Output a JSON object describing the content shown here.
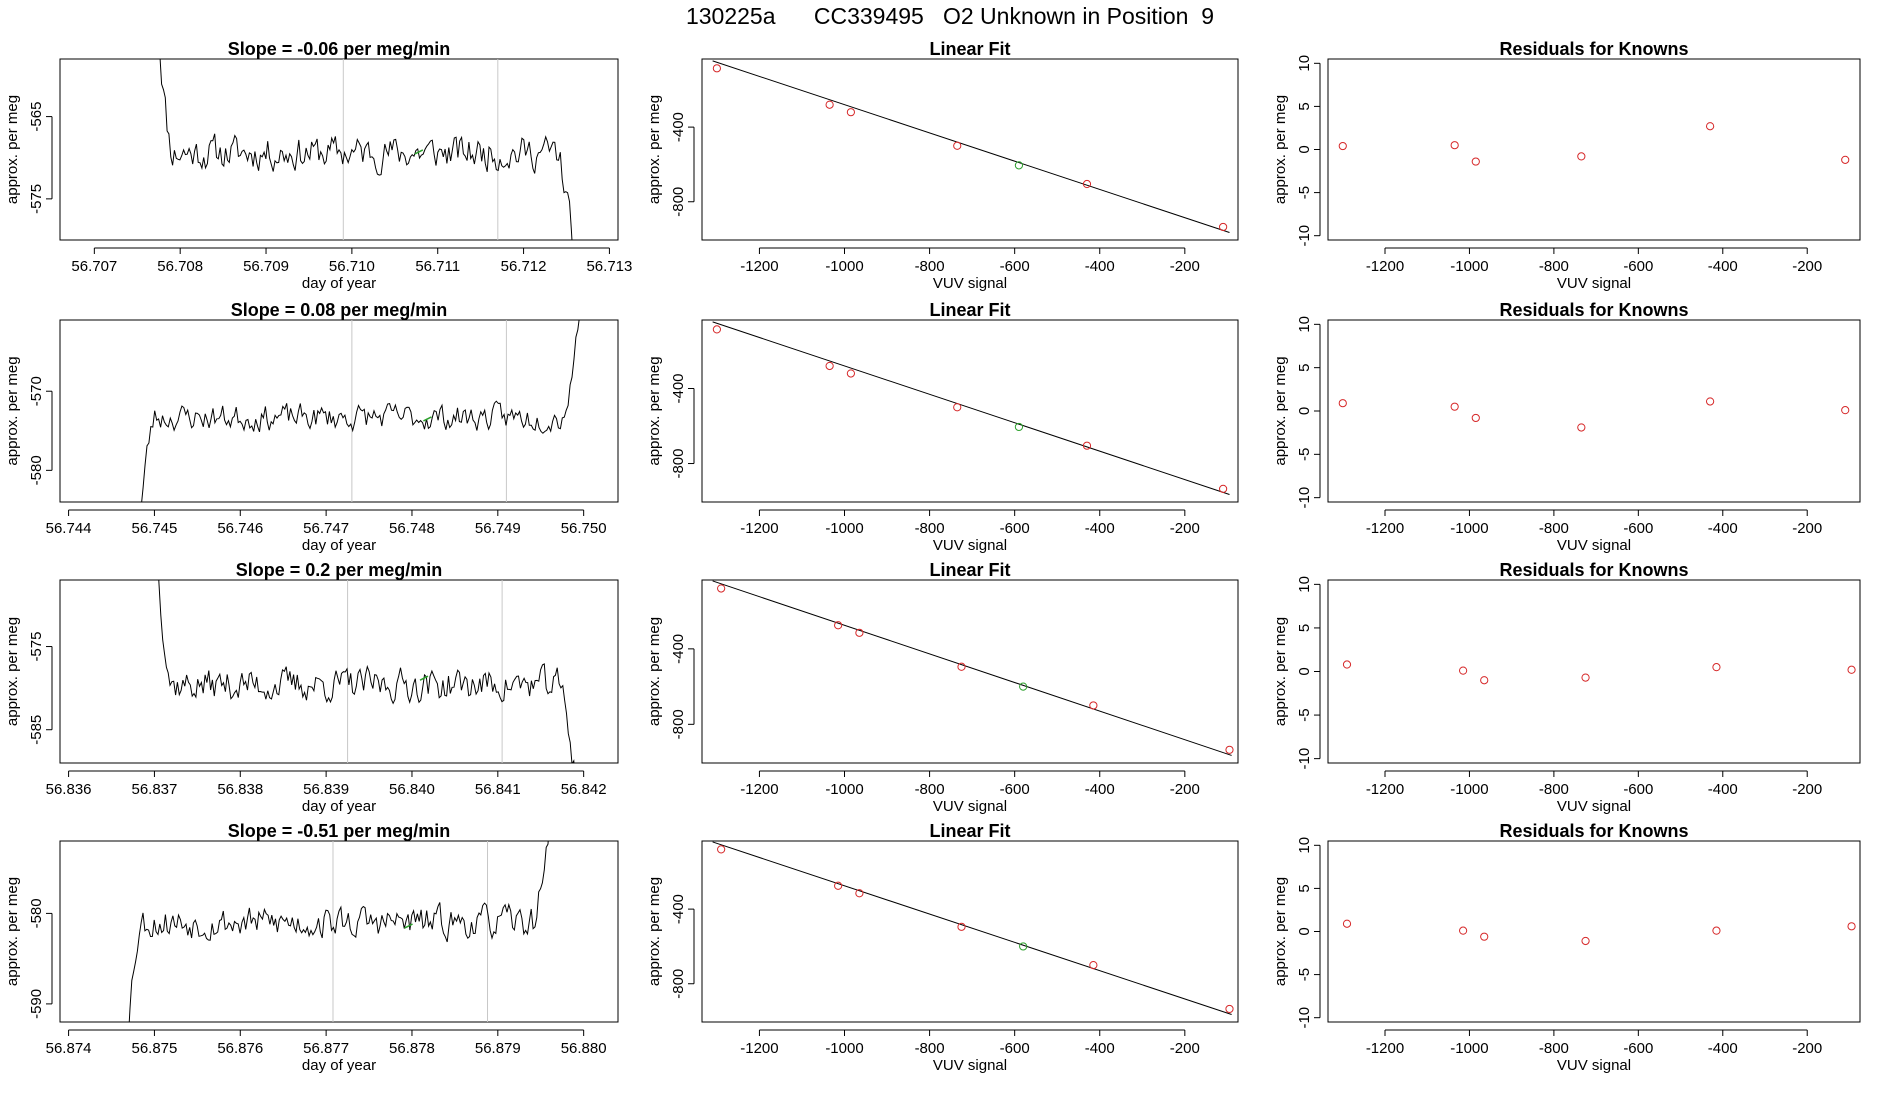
{
  "header": {
    "run_id": "130225a",
    "cylinder_id": "CC339495",
    "description": "O2 Unknown in Position  9"
  },
  "colors": {
    "line": "#000000",
    "known_point": "#d62728",
    "unknown_point": "#2ca02c",
    "marker_line": "#c8c8c8",
    "residual_point": "#d62728"
  },
  "chart_data": [
    {
      "type": "line",
      "title_prefix": "Slope = ",
      "slope": "-0.06",
      "title_suffix": " per meg/min",
      "title": "Slope =  -0.06  per meg/min",
      "xlabel": "day of year",
      "ylabel": "approx. per meg",
      "xlim": [
        56.7066,
        56.7131
      ],
      "ylim": [
        -580,
        -558
      ],
      "xticks": [
        56.707,
        56.708,
        56.709,
        56.71,
        56.711,
        56.712,
        56.713
      ],
      "xtick_labels": [
        "56.707",
        "56.708",
        "56.709",
        "56.710",
        "56.711",
        "56.712",
        "56.713"
      ],
      "yticks": [
        -565,
        -575
      ],
      "ytick_labels": [
        "-565",
        "-575"
      ],
      "x_start": 56.70772,
      "x_end": 56.71262,
      "baseline": -569.4,
      "noise": 2.0,
      "rise_start": -550,
      "tail_end": -585,
      "vlines": [
        56.7099,
        56.7117
      ],
      "unknown_marker": [
        56.71078,
        -569.3
      ],
      "seed": 11
    },
    {
      "type": "scatter",
      "title": "Linear Fit",
      "xlabel": "VUV signal",
      "ylabel": "approx. per meg",
      "xlim": [
        -1335,
        -75
      ],
      "ylim": [
        -1005,
        -35
      ],
      "xticks": [
        -1200,
        -1000,
        -800,
        -600,
        -400,
        -200
      ],
      "xtick_labels": [
        "-1200",
        "-1000",
        "-800",
        "-600",
        "-400",
        "-200"
      ],
      "yticks": [
        -400,
        -800
      ],
      "ytick_labels": [
        "-400",
        "-800"
      ],
      "fit_line": {
        "x": [
          -1310,
          -95
        ],
        "y": [
          -45,
          -965
        ]
      },
      "known_points": {
        "x": [
          -1300,
          -1035,
          -985,
          -735,
          -430,
          -110
        ],
        "y": [
          -85,
          -280,
          -320,
          -500,
          -705,
          -935
        ]
      },
      "unknown_point": {
        "x": [
          -590
        ],
        "y": [
          -605
        ]
      }
    },
    {
      "type": "scatter",
      "title": "Residuals for Knowns",
      "xlabel": "VUV signal",
      "ylabel": "approx. per meg",
      "xlim": [
        -1335,
        -75
      ],
      "ylim": [
        -10.5,
        10.5
      ],
      "xticks": [
        -1200,
        -1000,
        -800,
        -600,
        -400,
        -200
      ],
      "xtick_labels": [
        "-1200",
        "-1000",
        "-800",
        "-600",
        "-400",
        "-200"
      ],
      "yticks": [
        10,
        5,
        0,
        -5,
        -10
      ],
      "ytick_labels": [
        "10",
        "5",
        "0",
        "-5",
        "-10"
      ],
      "points": {
        "x": [
          -1300,
          -1035,
          -985,
          -735,
          -430,
          -110
        ],
        "y": [
          0.4,
          0.5,
          -1.4,
          -0.8,
          2.7,
          -1.2
        ]
      }
    },
    {
      "type": "line",
      "title_prefix": "Slope = ",
      "slope": "0.08",
      "title_suffix": " per meg/min",
      "title": "Slope =  0.08  per meg/min",
      "xlabel": "day of year",
      "ylabel": "approx. per meg",
      "xlim": [
        56.7439,
        56.7504
      ],
      "ylim": [
        -584,
        -561
      ],
      "xticks": [
        56.744,
        56.745,
        56.746,
        56.747,
        56.748,
        56.749,
        56.75
      ],
      "xtick_labels": [
        "56.744",
        "56.745",
        "56.746",
        "56.747",
        "56.748",
        "56.749",
        "56.750"
      ],
      "yticks": [
        -570,
        -580
      ],
      "ytick_labels": [
        "-570",
        "-580"
      ],
      "x_start": 56.7448,
      "x_end": 56.75,
      "baseline": -573.3,
      "noise": 1.6,
      "rise_start": -590,
      "tail_end": -555,
      "vlines": [
        56.7473,
        56.7491
      ],
      "unknown_marker": [
        56.74818,
        -573.5
      ],
      "seed": 23
    },
    {
      "type": "scatter",
      "title": "Linear Fit",
      "xlabel": "VUV signal",
      "ylabel": "approx. per meg",
      "xlim": [
        -1335,
        -75
      ],
      "ylim": [
        -1005,
        -35
      ],
      "xticks": [
        -1200,
        -1000,
        -800,
        -600,
        -400,
        -200
      ],
      "xtick_labels": [
        "-1200",
        "-1000",
        "-800",
        "-600",
        "-400",
        "-200"
      ],
      "yticks": [
        -400,
        -800
      ],
      "ytick_labels": [
        "-400",
        "-800"
      ],
      "fit_line": {
        "x": [
          -1310,
          -95
        ],
        "y": [
          -45,
          -965
        ]
      },
      "known_points": {
        "x": [
          -1300,
          -1035,
          -985,
          -735,
          -430,
          -110
        ],
        "y": [
          -85,
          -280,
          -320,
          -500,
          -705,
          -935
        ]
      },
      "unknown_point": {
        "x": [
          -590
        ],
        "y": [
          -605
        ]
      }
    },
    {
      "type": "scatter",
      "title": "Residuals for Knowns",
      "xlabel": "VUV signal",
      "ylabel": "approx. per meg",
      "xlim": [
        -1335,
        -75
      ],
      "ylim": [
        -10.5,
        10.5
      ],
      "xticks": [
        -1200,
        -1000,
        -800,
        -600,
        -400,
        -200
      ],
      "xtick_labels": [
        "-1200",
        "-1000",
        "-800",
        "-600",
        "-400",
        "-200"
      ],
      "yticks": [
        10,
        5,
        0,
        -5,
        -10
      ],
      "ytick_labels": [
        "10",
        "5",
        "0",
        "-5",
        "-10"
      ],
      "points": {
        "x": [
          -1300,
          -1035,
          -985,
          -735,
          -430,
          -110
        ],
        "y": [
          0.9,
          0.5,
          -0.8,
          -1.9,
          1.1,
          0.1
        ]
      }
    },
    {
      "type": "line",
      "title_prefix": "Slope = ",
      "slope": "0.2",
      "title_suffix": " per meg/min",
      "title": "Slope =  0.2  per meg/min",
      "xlabel": "day of year",
      "ylabel": "approx. per meg",
      "xlim": [
        56.8359,
        56.8424
      ],
      "ylim": [
        -589,
        -567
      ],
      "xticks": [
        56.836,
        56.837,
        56.838,
        56.839,
        56.84,
        56.841,
        56.842
      ],
      "xtick_labels": [
        "56.836",
        "56.837",
        "56.838",
        "56.839",
        "56.840",
        "56.841",
        "56.842"
      ],
      "yticks": [
        -575,
        -585
      ],
      "ytick_labels": [
        "-575",
        "-585"
      ],
      "x_start": 56.83701,
      "x_end": 56.84195,
      "baseline": -579.6,
      "noise": 1.9,
      "rise_start": -560,
      "tail_end": -595,
      "vlines": [
        56.83925,
        56.84105
      ],
      "unknown_marker": [
        56.84014,
        -578.8
      ],
      "seed": 37
    },
    {
      "type": "scatter",
      "title": "Linear Fit",
      "xlabel": "VUV signal",
      "ylabel": "approx. per meg",
      "xlim": [
        -1335,
        -75
      ],
      "ylim": [
        -1005,
        -35
      ],
      "xticks": [
        -1200,
        -1000,
        -800,
        -600,
        -400,
        -200
      ],
      "xtick_labels": [
        "-1200",
        "-1000",
        "-800",
        "-600",
        "-400",
        "-200"
      ],
      "yticks": [
        -400,
        -800
      ],
      "ytick_labels": [
        "-400",
        "-800"
      ],
      "fit_line": {
        "x": [
          -1310,
          -90
        ],
        "y": [
          -40,
          -965
        ]
      },
      "known_points": {
        "x": [
          -1290,
          -1015,
          -965,
          -725,
          -415,
          -95
        ],
        "y": [
          -80,
          -275,
          -315,
          -495,
          -700,
          -935
        ]
      },
      "unknown_point": {
        "x": [
          -580
        ],
        "y": [
          -600
        ]
      }
    },
    {
      "type": "scatter",
      "title": "Residuals for Knowns",
      "xlabel": "VUV signal",
      "ylabel": "approx. per meg",
      "xlim": [
        -1335,
        -75
      ],
      "ylim": [
        -10.5,
        10.5
      ],
      "xticks": [
        -1200,
        -1000,
        -800,
        -600,
        -400,
        -200
      ],
      "xtick_labels": [
        "-1200",
        "-1000",
        "-800",
        "-600",
        "-400",
        "-200"
      ],
      "yticks": [
        10,
        5,
        0,
        -5,
        -10
      ],
      "ytick_labels": [
        "10",
        "5",
        "0",
        "-5",
        "-10"
      ],
      "points": {
        "x": [
          -1290,
          -1015,
          -965,
          -725,
          -415,
          -95
        ],
        "y": [
          0.8,
          0.1,
          -1.0,
          -0.7,
          0.5,
          0.2
        ]
      }
    },
    {
      "type": "line",
      "title_prefix": "Slope = ",
      "slope": "-0.51",
      "title_suffix": " per meg/min",
      "title": "Slope =  -0.51  per meg/min",
      "xlabel": "day of year",
      "ylabel": "approx. per meg",
      "xlim": [
        56.8739,
        56.8804
      ],
      "ylim": [
        -592,
        -572
      ],
      "xticks": [
        56.874,
        56.875,
        56.876,
        56.877,
        56.878,
        56.879,
        56.88
      ],
      "xtick_labels": [
        "56.874",
        "56.875",
        "56.876",
        "56.877",
        "56.878",
        "56.879",
        "56.880"
      ],
      "yticks": [
        -580,
        -590
      ],
      "ytick_labels": [
        "-580",
        "-590"
      ],
      "x_start": 56.87465,
      "x_end": 56.87965,
      "baseline": -581.0,
      "noise": 1.7,
      "rise_start": -598,
      "tail_end": -565,
      "vlines": [
        56.87708,
        56.87888
      ],
      "unknown_marker": [
        56.87796,
        -581.4
      ],
      "seed": 53
    },
    {
      "type": "scatter",
      "title": "Linear Fit",
      "xlabel": "VUV signal",
      "ylabel": "approx. per meg",
      "xlim": [
        -1335,
        -75
      ],
      "ylim": [
        -1005,
        -35
      ],
      "xticks": [
        -1200,
        -1000,
        -800,
        -600,
        -400,
        -200
      ],
      "xtick_labels": [
        "-1200",
        "-1000",
        "-800",
        "-600",
        "-400",
        "-200"
      ],
      "yticks": [
        -400,
        -800
      ],
      "ytick_labels": [
        "-400",
        "-800"
      ],
      "fit_line": {
        "x": [
          -1310,
          -90
        ],
        "y": [
          -40,
          -965
        ]
      },
      "known_points": {
        "x": [
          -1290,
          -1015,
          -965,
          -725,
          -415,
          -95
        ],
        "y": [
          -80,
          -275,
          -315,
          -495,
          -700,
          -935
        ]
      },
      "unknown_point": {
        "x": [
          -580
        ],
        "y": [
          -600
        ]
      }
    },
    {
      "type": "scatter",
      "title": "Residuals for Knowns",
      "xlabel": "VUV signal",
      "ylabel": "approx. per meg",
      "xlim": [
        -1335,
        -75
      ],
      "ylim": [
        -10.5,
        10.5
      ],
      "xticks": [
        -1200,
        -1000,
        -800,
        -600,
        -400,
        -200
      ],
      "xtick_labels": [
        "-1200",
        "-1000",
        "-800",
        "-600",
        "-400",
        "-200"
      ],
      "yticks": [
        10,
        5,
        0,
        -5,
        -10
      ],
      "ytick_labels": [
        "10",
        "5",
        "0",
        "-5",
        "-10"
      ],
      "points": {
        "x": [
          -1290,
          -1015,
          -965,
          -725,
          -415,
          -95
        ],
        "y": [
          0.9,
          0.1,
          -0.6,
          -1.1,
          0.1,
          0.6
        ]
      }
    }
  ]
}
